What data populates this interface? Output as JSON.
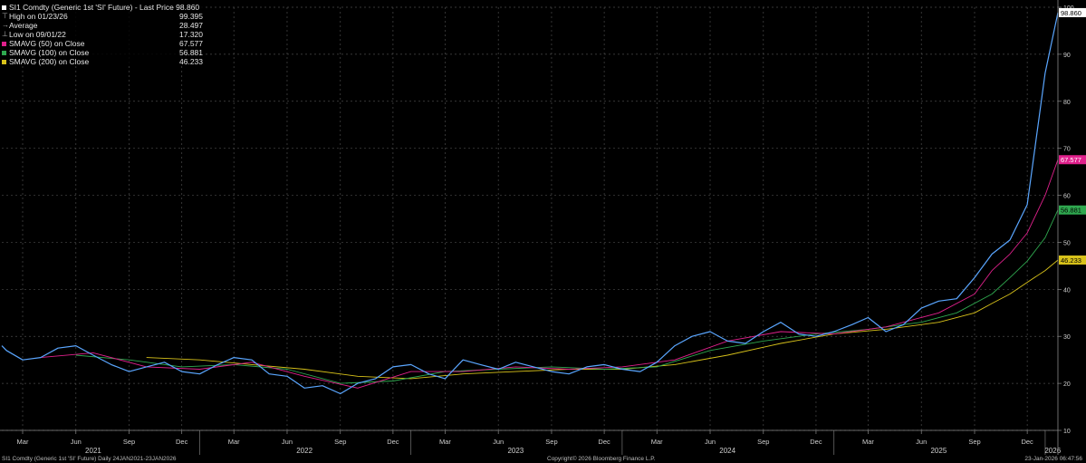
{
  "legend": {
    "title": "SI1 Comdty (Generic 1st 'SI' Future) - Last Price 98.860",
    "rows": [
      {
        "label": "High on 01/23/26",
        "value": "99.395"
      },
      {
        "label": "Average",
        "value": "28.497"
      },
      {
        "label": "Low on 09/01/22",
        "value": "17.320"
      },
      {
        "label": "SMAVG (50)  on Close",
        "value": "67.577"
      },
      {
        "label": "SMAVG (100)  on Close",
        "value": "56.881"
      },
      {
        "label": "SMAVG (200)  on Close",
        "value": "46.233"
      }
    ]
  },
  "footer": {
    "left": "SI1 Comdty (Generic 1st 'SI' Future) Daily 24JAN2021-23JAN2026",
    "center": "Copyright© 2026 Bloomberg Finance L.P.",
    "right": "23-Jan-2026 06:47:56"
  },
  "colors": {
    "price": "#5aa6ff",
    "sma50": "#e0208c",
    "sma100": "#2fa84f",
    "sma200": "#d8c21a",
    "last_badge": "#ffffff",
    "grid": "#4a4a4a"
  },
  "chart_data": {
    "type": "line",
    "x_range": [
      "2021-01-24",
      "2026-01-23"
    ],
    "ylim": [
      10,
      100
    ],
    "y_ticks": [
      10,
      20,
      30,
      40,
      50,
      60,
      70,
      80,
      90,
      100
    ],
    "grid": true,
    "legend_position": "top-left",
    "month_ticks": [
      {
        "label": "Mar",
        "date": "2021-03-01"
      },
      {
        "label": "Jun",
        "date": "2021-06-01"
      },
      {
        "label": "Sep",
        "date": "2021-09-01"
      },
      {
        "label": "Dec",
        "date": "2021-12-01"
      },
      {
        "label": "Mar",
        "date": "2022-03-01"
      },
      {
        "label": "Jun",
        "date": "2022-06-01"
      },
      {
        "label": "Sep",
        "date": "2022-09-01"
      },
      {
        "label": "Dec",
        "date": "2022-12-01"
      },
      {
        "label": "Mar",
        "date": "2023-03-01"
      },
      {
        "label": "Jun",
        "date": "2023-06-01"
      },
      {
        "label": "Sep",
        "date": "2023-09-01"
      },
      {
        "label": "Dec",
        "date": "2023-12-01"
      },
      {
        "label": "Mar",
        "date": "2024-03-01"
      },
      {
        "label": "Jun",
        "date": "2024-06-01"
      },
      {
        "label": "Sep",
        "date": "2024-09-01"
      },
      {
        "label": "Dec",
        "date": "2024-12-01"
      },
      {
        "label": "Mar",
        "date": "2025-03-01"
      },
      {
        "label": "Jun",
        "date": "2025-06-01"
      },
      {
        "label": "Sep",
        "date": "2025-09-01"
      },
      {
        "label": "Dec",
        "date": "2025-12-01"
      }
    ],
    "year_ticks": [
      {
        "label": "2021",
        "date": "2021-07-01"
      },
      {
        "label": "2022",
        "date": "2022-07-01"
      },
      {
        "label": "2023",
        "date": "2023-07-01"
      },
      {
        "label": "2024",
        "date": "2024-07-01"
      },
      {
        "label": "2025",
        "date": "2025-07-01"
      },
      {
        "label": "2026",
        "date": "2026-01-14"
      }
    ],
    "year_dividers": [
      "2022-01-01",
      "2023-01-01",
      "2024-01-01",
      "2025-01-01",
      "2026-01-01"
    ],
    "last_value_labels": [
      {
        "series": "price",
        "value": 98.86,
        "text": "98.860"
      },
      {
        "series": "sma50",
        "value": 67.577,
        "text": "67.577"
      },
      {
        "series": "sma100",
        "value": 56.881,
        "text": "56.881"
      },
      {
        "series": "sma200",
        "value": 46.233,
        "text": "46.233"
      }
    ],
    "series": [
      {
        "key": "price",
        "x": [
          "2021-01-24",
          "2021-02-01",
          "2021-03-01",
          "2021-04-01",
          "2021-05-01",
          "2021-06-01",
          "2021-07-01",
          "2021-08-01",
          "2021-09-01",
          "2021-10-01",
          "2021-11-01",
          "2021-12-01",
          "2022-01-01",
          "2022-02-01",
          "2022-03-01",
          "2022-04-01",
          "2022-05-01",
          "2022-06-01",
          "2022-07-01",
          "2022-08-01",
          "2022-09-01",
          "2022-10-01",
          "2022-11-01",
          "2022-12-01",
          "2023-01-01",
          "2023-02-01",
          "2023-03-01",
          "2023-04-01",
          "2023-05-01",
          "2023-06-01",
          "2023-07-01",
          "2023-08-01",
          "2023-09-01",
          "2023-10-01",
          "2023-11-01",
          "2023-12-01",
          "2024-01-01",
          "2024-02-01",
          "2024-03-01",
          "2024-04-01",
          "2024-05-01",
          "2024-06-01",
          "2024-07-01",
          "2024-08-01",
          "2024-09-01",
          "2024-10-01",
          "2024-11-01",
          "2024-12-01",
          "2025-01-01",
          "2025-02-01",
          "2025-03-01",
          "2025-04-01",
          "2025-05-01",
          "2025-06-01",
          "2025-07-01",
          "2025-08-01",
          "2025-09-01",
          "2025-10-01",
          "2025-11-01",
          "2025-12-01",
          "2026-01-01",
          "2026-01-23"
        ],
        "values": [
          28.0,
          27.0,
          25.0,
          25.5,
          27.5,
          28.0,
          26.0,
          24.0,
          22.5,
          23.5,
          24.5,
          22.5,
          22.0,
          24.0,
          25.5,
          25.0,
          22.0,
          21.5,
          19.0,
          19.5,
          17.8,
          20.0,
          21.0,
          23.5,
          24.0,
          22.0,
          21.0,
          25.0,
          24.0,
          23.0,
          24.5,
          23.5,
          22.5,
          22.0,
          23.5,
          24.0,
          23.0,
          22.5,
          24.5,
          28.0,
          30.0,
          31.0,
          29.0,
          28.5,
          31.0,
          33.0,
          30.5,
          30.0,
          31.0,
          32.5,
          34.0,
          31.0,
          32.5,
          36.0,
          37.5,
          38.0,
          42.5,
          47.5,
          50.5,
          58.0,
          86.0,
          98.86
        ]
      },
      {
        "key": "sma50",
        "x": [
          "2021-04-01",
          "2021-07-01",
          "2021-10-01",
          "2022-01-01",
          "2022-04-01",
          "2022-07-01",
          "2022-10-01",
          "2023-01-01",
          "2023-04-01",
          "2023-07-01",
          "2023-10-01",
          "2024-01-01",
          "2024-04-01",
          "2024-07-01",
          "2024-10-01",
          "2025-01-01",
          "2025-04-01",
          "2025-07-01",
          "2025-09-01",
          "2025-10-01",
          "2025-11-01",
          "2025-12-01",
          "2026-01-01",
          "2026-01-23"
        ],
        "values": [
          25.5,
          26.5,
          23.5,
          23.0,
          24.5,
          21.5,
          19.0,
          22.5,
          22.5,
          23.5,
          23.0,
          23.5,
          25.0,
          29.0,
          31.0,
          30.5,
          32.0,
          35.0,
          39.0,
          44.0,
          47.5,
          52.0,
          60.0,
          67.577
        ]
      },
      {
        "key": "sma100",
        "x": [
          "2021-06-01",
          "2021-09-01",
          "2021-12-01",
          "2022-03-01",
          "2022-06-01",
          "2022-09-01",
          "2022-12-01",
          "2023-03-01",
          "2023-06-01",
          "2023-09-01",
          "2023-12-01",
          "2024-03-01",
          "2024-06-01",
          "2024-09-01",
          "2024-12-01",
          "2025-03-01",
          "2025-06-01",
          "2025-08-01",
          "2025-10-01",
          "2025-11-01",
          "2025-12-01",
          "2026-01-01",
          "2026-01-23"
        ],
        "values": [
          26.0,
          25.0,
          23.5,
          24.0,
          23.0,
          20.0,
          20.5,
          22.5,
          23.0,
          23.5,
          23.0,
          23.5,
          27.0,
          29.0,
          30.5,
          31.5,
          33.0,
          35.0,
          39.0,
          42.5,
          46.0,
          51.0,
          56.881
        ]
      },
      {
        "key": "sma200",
        "x": [
          "2021-10-01",
          "2022-01-01",
          "2022-04-01",
          "2022-07-01",
          "2022-10-01",
          "2023-01-01",
          "2023-04-01",
          "2023-07-01",
          "2023-10-01",
          "2024-01-01",
          "2024-04-01",
          "2024-07-01",
          "2024-10-01",
          "2025-01-01",
          "2025-04-01",
          "2025-07-01",
          "2025-09-01",
          "2025-10-01",
          "2025-11-01",
          "2025-12-01",
          "2026-01-01",
          "2026-01-23"
        ],
        "values": [
          25.5,
          25.0,
          24.0,
          23.0,
          21.5,
          21.0,
          22.0,
          22.5,
          23.0,
          23.0,
          24.0,
          26.0,
          28.5,
          30.5,
          31.5,
          33.0,
          35.0,
          37.0,
          39.0,
          41.5,
          44.0,
          46.233
        ]
      }
    ]
  }
}
